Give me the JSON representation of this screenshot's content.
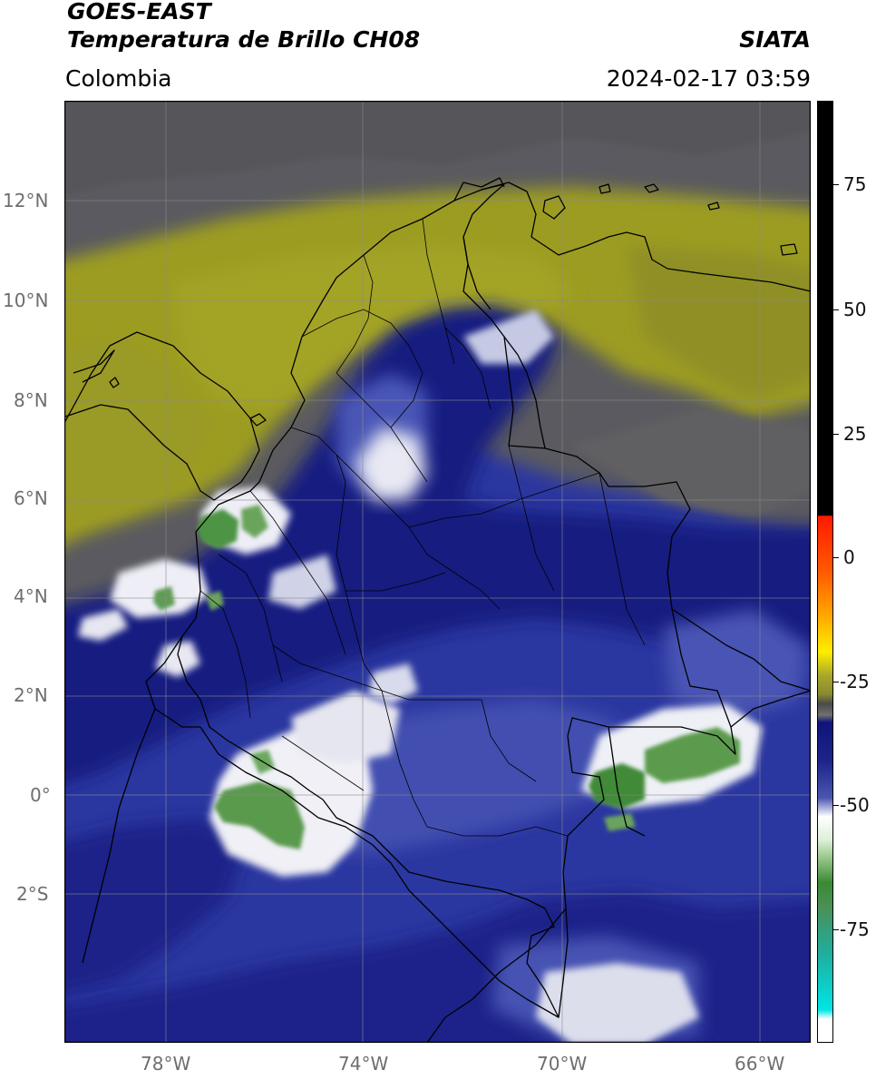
{
  "header": {
    "satellite": "GOES-EAST",
    "product": "Temperatura de Brillo CH08",
    "region": "Colombia",
    "agency": "SIATA",
    "timestamp": "2024-02-17 03:59"
  },
  "map": {
    "lat_labels": [
      "12°N",
      "10°N",
      "8°N",
      "6°N",
      "4°N",
      "2°N",
      "0°",
      "2°S"
    ],
    "lon_labels": [
      "78°W",
      "74°W",
      "70°W",
      "66°W"
    ],
    "colors": {
      "dry_olive": "#9a9a24",
      "gray": "#58585c",
      "navy": "#1a1f86",
      "blue": "#3a46a8",
      "white_cloud": "#f2f2f6",
      "green": "#3e8a3a",
      "border": "#000000"
    }
  },
  "colorbar": {
    "labels": [
      "75",
      "50",
      "25",
      "0",
      "-25",
      "-50",
      "-75"
    ],
    "colors": [
      "#000000",
      "#e41a1c",
      "#ff8c00",
      "#ffd700",
      "#9a9a24",
      "#555555",
      "#1a1f86",
      "#ffffff",
      "#2e8b2e",
      "#00e0e0"
    ]
  }
}
